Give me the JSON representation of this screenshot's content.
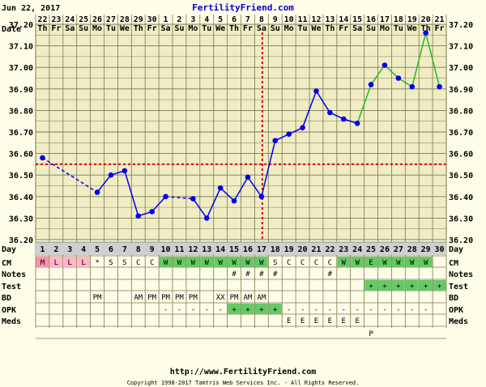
{
  "header": {
    "date": "Jun 22, 2017",
    "site": "FertilityFriend.com"
  },
  "footer": {
    "url": "http://www.FertilityFriend.com",
    "copyright": "Copyright 1998-2017 Tamtris Web Services Inc. - All Rights Reserved."
  },
  "row_labels": {
    "date": "Date",
    "day": "Day",
    "cm": "CM",
    "notes": "Notes",
    "test": "Test",
    "bd": "BD",
    "opk": "OPK",
    "meds": "Meds"
  },
  "dates": [
    "22",
    "23",
    "24",
    "25",
    "26",
    "27",
    "28",
    "29",
    "30",
    "1",
    "2",
    "3",
    "4",
    "5",
    "6",
    "7",
    "8",
    "9",
    "10",
    "11",
    "12",
    "13",
    "14",
    "15",
    "16",
    "17",
    "18",
    "19",
    "20",
    "21"
  ],
  "weekdays": [
    "Th",
    "Fr",
    "Sa",
    "Su",
    "Mo",
    "Tu",
    "We",
    "Th",
    "Fr",
    "Sa",
    "Su",
    "Mo",
    "Tu",
    "We",
    "Th",
    "Fr",
    "Sa",
    "Su",
    "Mo",
    "Tu",
    "We",
    "Th",
    "Fr",
    "Sa",
    "Su",
    "Mo",
    "Tu",
    "We",
    "Th",
    "Fr"
  ],
  "cycle_days": [
    "1",
    "2",
    "3",
    "4",
    "5",
    "6",
    "7",
    "8",
    "9",
    "10",
    "11",
    "12",
    "13",
    "14",
    "15",
    "16",
    "17",
    "18",
    "19",
    "20",
    "21",
    "22",
    "23",
    "24",
    "25",
    "26",
    "27",
    "28",
    "29",
    "30"
  ],
  "y_ticks": [
    "37.20",
    "37.10",
    "37.00",
    "36.90",
    "36.80",
    "36.70",
    "36.60",
    "36.50",
    "36.40",
    "36.30",
    "36.20"
  ],
  "cm": [
    "M",
    "L",
    "L",
    "L",
    "*",
    "S",
    "S",
    "C",
    "C",
    "W",
    "W",
    "W",
    "W",
    "W",
    "W",
    "W",
    "W",
    "S",
    "C",
    "C",
    "C",
    "C",
    "W",
    "W",
    "E",
    "W",
    "W",
    "W",
    "W",
    ""
  ],
  "cm_colors": {
    "M": "#ff8fa8",
    "L": "#ffb6c8",
    "W": "#66c966",
    "E": "#66c966"
  },
  "notes": [
    "",
    "",
    "",
    "",
    "",
    "",
    "",
    "",
    "",
    "",
    "",
    "",
    "",
    "",
    "#",
    "#",
    "#",
    "#",
    "",
    "",
    "",
    "#",
    "",
    "",
    "",
    "",
    "",
    "",
    "",
    ""
  ],
  "test": [
    "",
    "",
    "",
    "",
    "",
    "",
    "",
    "",
    "",
    "",
    "",
    "",
    "",
    "",
    "",
    "",
    "",
    "",
    "",
    "",
    "",
    "",
    "",
    "",
    "+",
    "+",
    "+",
    "+",
    "+",
    "+"
  ],
  "bd": [
    "",
    "",
    "",
    "",
    "PM",
    "",
    "",
    "AM",
    "PM",
    "PM",
    "PM",
    "PM",
    "",
    "XX",
    "PM",
    "AM",
    "AM",
    "",
    "",
    "",
    "",
    "",
    "",
    "",
    "",
    "",
    "",
    "",
    "",
    ""
  ],
  "opk": [
    "",
    "",
    "",
    "",
    "",
    "",
    "",
    "",
    "",
    "-",
    "-",
    "-",
    "-",
    "-",
    "+",
    "+",
    "+",
    "+",
    "-",
    "-",
    "-",
    "-",
    "-",
    "-",
    "-",
    "-",
    "-",
    "-",
    "-",
    ""
  ],
  "meds": [
    "",
    "",
    "",
    "",
    "",
    "",
    "",
    "",
    "",
    "",
    "",
    "",
    "",
    "",
    "",
    "",
    "",
    "",
    "E",
    "E",
    "E",
    "E",
    "E",
    "E",
    "",
    "",
    "",
    "",
    "",
    ""
  ],
  "meds2": [
    "",
    "",
    "",
    "",
    "",
    "",
    "",
    "",
    "",
    "",
    "",
    "",
    "",
    "",
    "",
    "",
    "",
    "",
    "",
    "",
    "",
    "",
    "",
    "",
    "P",
    "",
    "",
    "",
    "",
    ""
  ],
  "chart_data": {
    "type": "line",
    "x": [
      "1",
      "2",
      "3",
      "4",
      "5",
      "6",
      "7",
      "8",
      "9",
      "10",
      "11",
      "12",
      "13",
      "14",
      "15",
      "16",
      "17",
      "18",
      "19",
      "20",
      "21",
      "22",
      "23",
      "24",
      "25",
      "26",
      "27",
      "28",
      "29",
      "30"
    ],
    "series": [
      {
        "values": [
          36.58,
          null,
          null,
          null,
          36.42,
          36.5,
          36.52,
          36.31,
          36.33,
          36.4,
          null,
          36.39,
          36.3,
          36.44,
          36.38,
          36.49,
          36.4,
          36.66,
          36.69,
          36.72,
          36.89,
          36.79,
          36.76,
          36.74,
          36.92,
          37.01,
          36.95,
          36.91,
          37.16,
          36.91
        ]
      }
    ],
    "coverline": 36.55,
    "ovulation_day": "17",
    "ylim": [
      36.2,
      37.2
    ],
    "colors": {
      "pre": "#0000ee",
      "post": "#22bb22",
      "coverline": "#dd0000",
      "grid": "#7a7a52",
      "fill": "#f0ecc4"
    }
  }
}
